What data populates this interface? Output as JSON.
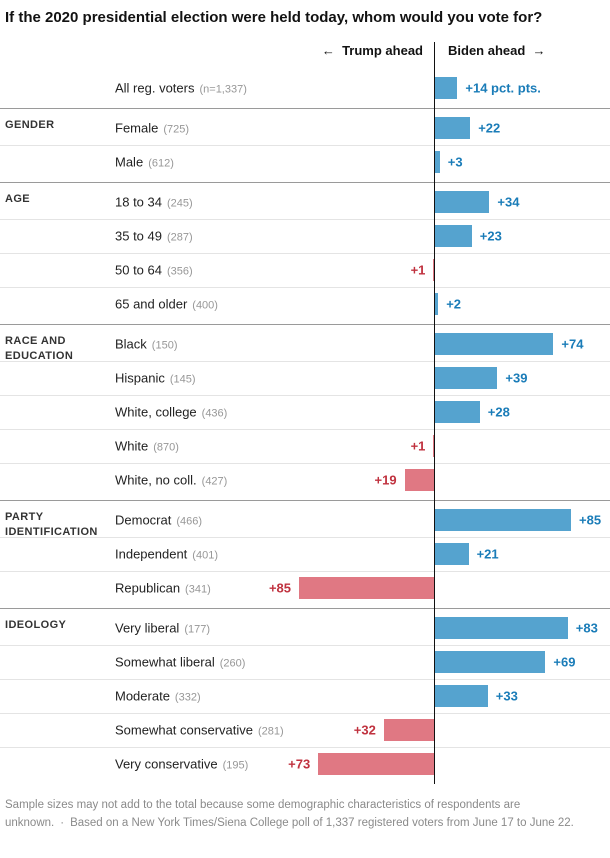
{
  "title": "If the 2020 presidential election were held today, whom would you vote for?",
  "legend": {
    "left_arrow": "←",
    "trump_label": "Trump ahead",
    "biden_label": "Biden ahead",
    "right_arrow": "→"
  },
  "colors": {
    "biden_bar": "#55a3cf",
    "biden_text": "#1a7cb8",
    "trump_bar": "#e07883",
    "trump_text": "#c0323f"
  },
  "footer": {
    "note": "Sample sizes may not add to the total because some demographic characteristics of respondents are unknown.",
    "separator": "·",
    "source": "Based on a New York Times/Siena College poll of 1,337 registered voters from June 17 to June 22."
  },
  "chart_data": {
    "type": "bar",
    "orientation": "horizontal-diverging",
    "unit": "pct. pts.",
    "xlim": [
      -85,
      85
    ],
    "legend_position": "top",
    "grid": false,
    "sections": [
      {
        "label": "",
        "rows": [
          {
            "label": "All reg. voters",
            "n": "(n=1,337)",
            "side": "biden",
            "value": 14,
            "value_label": "+14 pct. pts."
          }
        ]
      },
      {
        "label": "GENDER",
        "rows": [
          {
            "label": "Female",
            "n": "(725)",
            "side": "biden",
            "value": 22,
            "value_label": "+22"
          },
          {
            "label": "Male",
            "n": "(612)",
            "side": "biden",
            "value": 3,
            "value_label": "+3"
          }
        ]
      },
      {
        "label": "AGE",
        "rows": [
          {
            "label": "18 to 34",
            "n": "(245)",
            "side": "biden",
            "value": 34,
            "value_label": "+34"
          },
          {
            "label": "35 to 49",
            "n": "(287)",
            "side": "biden",
            "value": 23,
            "value_label": "+23"
          },
          {
            "label": "50 to 64",
            "n": "(356)",
            "side": "trump",
            "value": 1,
            "value_label": "+1"
          },
          {
            "label": "65 and older",
            "n": "(400)",
            "side": "biden",
            "value": 2,
            "value_label": "+2"
          }
        ]
      },
      {
        "label": "RACE AND EDUCATION",
        "rows": [
          {
            "label": "Black",
            "n": "(150)",
            "side": "biden",
            "value": 74,
            "value_label": "+74"
          },
          {
            "label": "Hispanic",
            "n": "(145)",
            "side": "biden",
            "value": 39,
            "value_label": "+39"
          },
          {
            "label": "White, college",
            "n": "(436)",
            "side": "biden",
            "value": 28,
            "value_label": "+28"
          },
          {
            "label": "White",
            "n": "(870)",
            "side": "trump",
            "value": 1,
            "value_label": "+1"
          },
          {
            "label": "White, no coll.",
            "n": "(427)",
            "side": "trump",
            "value": 19,
            "value_label": "+19"
          }
        ]
      },
      {
        "label": "PARTY IDENTIFICATION",
        "rows": [
          {
            "label": "Democrat",
            "n": "(466)",
            "side": "biden",
            "value": 85,
            "value_label": "+85"
          },
          {
            "label": "Independent",
            "n": "(401)",
            "side": "biden",
            "value": 21,
            "value_label": "+21"
          },
          {
            "label": "Republican",
            "n": "(341)",
            "side": "trump",
            "value": 85,
            "value_label": "+85"
          }
        ]
      },
      {
        "label": "IDEOLOGY",
        "rows": [
          {
            "label": "Very liberal",
            "n": "(177)",
            "side": "biden",
            "value": 83,
            "value_label": "+83"
          },
          {
            "label": "Somewhat liberal",
            "n": "(260)",
            "side": "biden",
            "value": 69,
            "value_label": "+69"
          },
          {
            "label": "Moderate",
            "n": "(332)",
            "side": "biden",
            "value": 33,
            "value_label": "+33"
          },
          {
            "label": "Somewhat conservative",
            "n": "(281)",
            "side": "trump",
            "value": 32,
            "value_label": "+32"
          },
          {
            "label": "Very conservative",
            "n": "(195)",
            "side": "trump",
            "value": 73,
            "value_label": "+73"
          }
        ]
      }
    ]
  }
}
